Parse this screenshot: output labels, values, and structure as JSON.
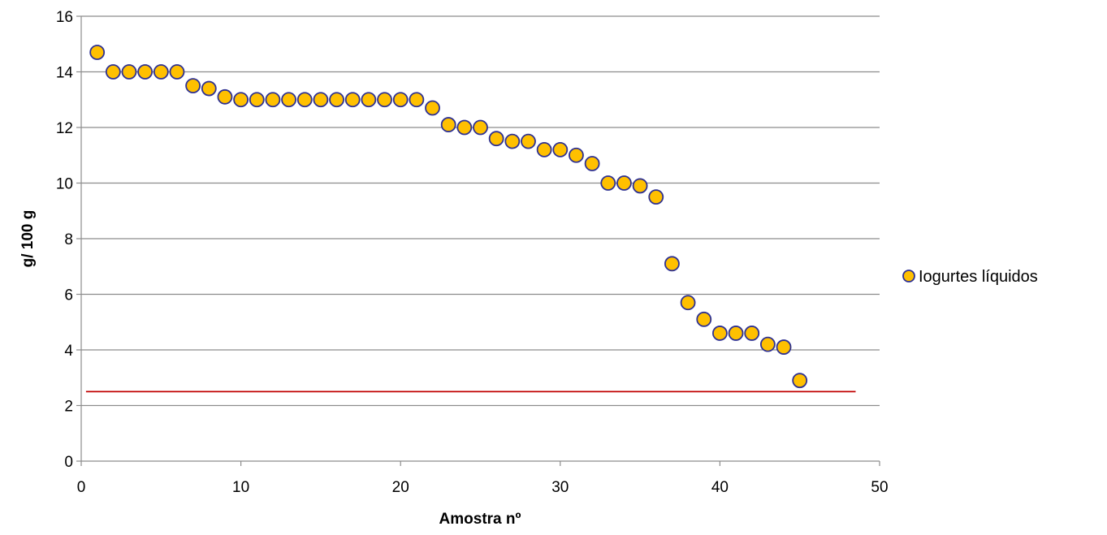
{
  "chart_data": {
    "type": "scatter",
    "title": "",
    "xlabel": "Amostra nº",
    "ylabel": "g/ 100 g",
    "xlim": [
      0,
      50
    ],
    "ylim": [
      0,
      16
    ],
    "x_ticks": [
      0,
      10,
      20,
      30,
      40,
      50
    ],
    "y_ticks": [
      0,
      2,
      4,
      6,
      8,
      10,
      12,
      14,
      16
    ],
    "grid": "horizontal",
    "legend_position": "right",
    "series": [
      {
        "name": "Iogurtes líquidos",
        "marker": "circle",
        "fill_color": "#FFC000",
        "edge_color": "#2E3192",
        "x": [
          1,
          2,
          3,
          4,
          5,
          6,
          7,
          8,
          9,
          10,
          11,
          12,
          13,
          14,
          15,
          16,
          17,
          18,
          19,
          20,
          21,
          22,
          23,
          24,
          25,
          26,
          27,
          28,
          29,
          30,
          31,
          32,
          33,
          34,
          35,
          36,
          37,
          38,
          39,
          40,
          41,
          42,
          43,
          44,
          45
        ],
        "y": [
          14.7,
          14,
          14,
          14,
          14,
          14,
          13.5,
          13.4,
          13.1,
          13,
          13,
          13,
          13,
          13,
          13,
          13,
          13,
          13,
          13,
          13,
          13,
          12.7,
          12.1,
          12,
          12,
          11.6,
          11.5,
          11.5,
          11.2,
          11.2,
          11,
          10.7,
          10,
          10,
          9.9,
          9.5,
          7.1,
          5.7,
          5.1,
          4.6,
          4.6,
          4.6,
          4.2,
          4.1,
          2.9
        ]
      }
    ],
    "reference_line": {
      "y": 2.5,
      "x_range": [
        0.3,
        48.5
      ],
      "color": "#C00000"
    }
  }
}
